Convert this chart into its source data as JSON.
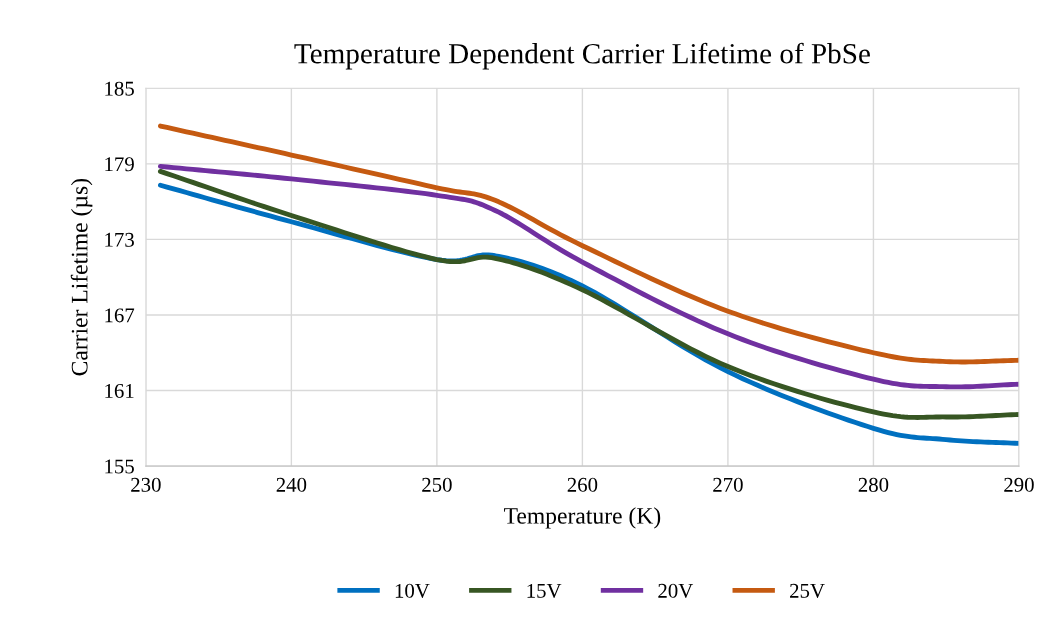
{
  "chart_data": {
    "type": "line",
    "title": "Temperature Dependent Carrier Lifetime of PbSe",
    "xlabel": "Temperature (K)",
    "ylabel": "Carrier Lifetime (µs)",
    "x": [
      231,
      240,
      250,
      254,
      260,
      270,
      280,
      285,
      290
    ],
    "series": [
      {
        "name": "10V",
        "color": "#0070c0",
        "values": [
          177.3,
          174.4,
          171.4,
          171.7,
          169.3,
          162.5,
          158.0,
          157.1,
          156.8
        ]
      },
      {
        "name": "15V",
        "color": "#375623",
        "values": [
          178.4,
          174.9,
          171.4,
          171.5,
          169.0,
          162.9,
          159.3,
          158.9,
          159.1
        ]
      },
      {
        "name": "20V",
        "color": "#7030a0",
        "values": [
          178.8,
          177.8,
          176.5,
          175.3,
          171.2,
          165.5,
          161.9,
          161.3,
          161.5
        ]
      },
      {
        "name": "25V",
        "color": "#c55a11",
        "values": [
          182.0,
          179.7,
          177.1,
          176.1,
          172.5,
          167.3,
          164.0,
          163.3,
          163.4
        ]
      }
    ],
    "xlim": [
      230,
      290
    ],
    "xticks": [
      230,
      240,
      250,
      260,
      270,
      280,
      290
    ],
    "ylim": [
      155,
      185
    ],
    "yticks": [
      155,
      161,
      167,
      173,
      179,
      185
    ],
    "grid": true,
    "legend": "bottom",
    "marker": "none",
    "line_style": "solid"
  }
}
